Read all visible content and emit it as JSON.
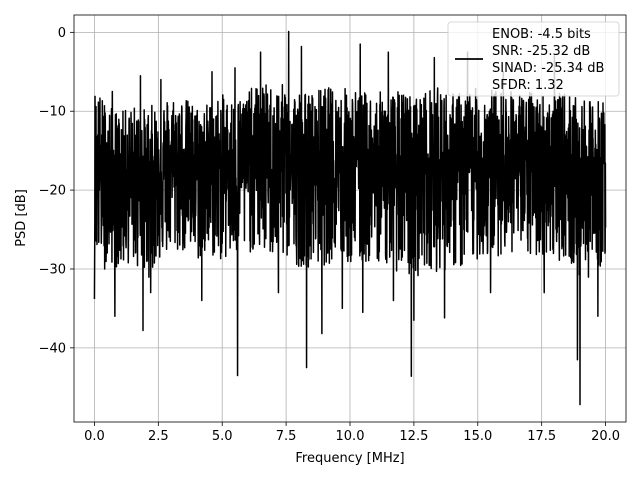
{
  "chart_data": {
    "type": "line",
    "title": "",
    "xlabel": "Frequency [MHz]",
    "ylabel": "PSD [dB]",
    "xlim": [
      -0.8,
      20.8
    ],
    "ylim": [
      -49.4,
      2.2
    ],
    "xticks": [
      0.0,
      2.5,
      5.0,
      7.5,
      10.0,
      12.5,
      15.0,
      17.5,
      20.0
    ],
    "xtick_labels": [
      "0.0",
      "2.5",
      "5.0",
      "7.5",
      "10.0",
      "12.5",
      "15.0",
      "17.5",
      "20.0"
    ],
    "yticks": [
      0,
      -10,
      -20,
      -30,
      -40
    ],
    "ytick_labels": [
      "0",
      "−10",
      "−20",
      "−30",
      "−40"
    ],
    "grid": true,
    "legend_position": "top-right",
    "series": [
      {
        "name": "",
        "color": "#000000",
        "legend_lines": [
          "ENOB: -4.5 bits",
          "SNR: -25.32 dB",
          "SINAD: -25.34 dB",
          "SFDR: 1.32"
        ],
        "envelope_top": [
          [
            0.0,
            -3
          ],
          [
            0.5,
            -6
          ],
          [
            1.0,
            -7
          ],
          [
            1.5,
            -6
          ],
          [
            2.0,
            -6
          ],
          [
            2.5,
            -5.5
          ],
          [
            3.0,
            -4.5
          ],
          [
            3.5,
            -5
          ],
          [
            4.0,
            -6
          ],
          [
            4.5,
            -5.5
          ],
          [
            5.0,
            -4.5
          ],
          [
            5.5,
            -5
          ],
          [
            6.0,
            -4
          ],
          [
            6.5,
            -3
          ],
          [
            7.0,
            -3
          ],
          [
            7.5,
            -3
          ],
          [
            8.0,
            -3.5
          ],
          [
            8.5,
            -4
          ],
          [
            9.0,
            -3
          ],
          [
            9.5,
            -3.5
          ],
          [
            10.0,
            -3
          ],
          [
            10.5,
            -4
          ],
          [
            11.0,
            -4
          ],
          [
            11.5,
            -4
          ],
          [
            12.0,
            -3.5
          ],
          [
            12.5,
            -4
          ],
          [
            13.0,
            -3.5
          ],
          [
            13.5,
            -3
          ],
          [
            14.0,
            -4
          ],
          [
            14.5,
            -3.5
          ],
          [
            15.0,
            -3.5
          ],
          [
            15.5,
            -3.5
          ],
          [
            16.0,
            -4
          ],
          [
            16.5,
            -4
          ],
          [
            17.0,
            -4
          ],
          [
            17.5,
            -4
          ],
          [
            18.0,
            -4.5
          ],
          [
            18.5,
            -4
          ],
          [
            19.0,
            -5
          ],
          [
            19.5,
            -5
          ],
          [
            20.0,
            -5
          ]
        ],
        "envelope_bottom": [
          [
            0.0,
            -33
          ],
          [
            0.5,
            -33
          ],
          [
            1.0,
            -34
          ],
          [
            1.5,
            -33
          ],
          [
            2.0,
            -36
          ],
          [
            2.5,
            -33
          ],
          [
            3.0,
            -32
          ],
          [
            3.5,
            -32
          ],
          [
            4.0,
            -33
          ],
          [
            4.5,
            -33
          ],
          [
            5.0,
            -33
          ],
          [
            5.5,
            -33
          ],
          [
            6.0,
            -32
          ],
          [
            6.5,
            -32
          ],
          [
            7.0,
            -33
          ],
          [
            7.5,
            -33
          ],
          [
            8.0,
            -34
          ],
          [
            8.5,
            -34
          ],
          [
            9.0,
            -34
          ],
          [
            9.5,
            -33
          ],
          [
            10.0,
            -34
          ],
          [
            10.5,
            -34
          ],
          [
            11.0,
            -33
          ],
          [
            11.5,
            -34
          ],
          [
            12.0,
            -35
          ],
          [
            12.5,
            -36
          ],
          [
            13.0,
            -34
          ],
          [
            13.5,
            -35
          ],
          [
            14.0,
            -34
          ],
          [
            14.5,
            -35
          ],
          [
            15.0,
            -33
          ],
          [
            15.5,
            -33
          ],
          [
            16.0,
            -32
          ],
          [
            16.5,
            -32
          ],
          [
            17.0,
            -33
          ],
          [
            17.5,
            -33
          ],
          [
            18.0,
            -33
          ],
          [
            18.5,
            -33
          ],
          [
            19.0,
            -36
          ],
          [
            19.5,
            -35
          ],
          [
            20.0,
            -33
          ]
        ],
        "peaks": [
          [
            0.0,
            -2.8
          ],
          [
            0.7,
            -7.5
          ],
          [
            1.8,
            -5.5
          ],
          [
            2.6,
            -6
          ],
          [
            4.6,
            -5
          ],
          [
            5.5,
            -4.5
          ],
          [
            6.5,
            -2.5
          ],
          [
            7.6,
            0.1
          ],
          [
            8.1,
            -1.8
          ],
          [
            10.4,
            -1.5
          ],
          [
            11.5,
            -2.5
          ],
          [
            13.3,
            -3.2
          ],
          [
            14.6,
            -2.5
          ],
          [
            15.5,
            -2.5
          ],
          [
            16.0,
            -5
          ],
          [
            18.0,
            -3
          ],
          [
            18.9,
            -5.5
          ]
        ],
        "dips": [
          [
            0.0,
            -33.8
          ],
          [
            0.4,
            -30
          ],
          [
            0.8,
            -36
          ],
          [
            1.9,
            -37.8
          ],
          [
            2.2,
            -33
          ],
          [
            4.2,
            -34
          ],
          [
            5.6,
            -43.5
          ],
          [
            7.2,
            -33
          ],
          [
            8.3,
            -42.5
          ],
          [
            8.9,
            -38.2
          ],
          [
            9.7,
            -35
          ],
          [
            10.5,
            -35.5
          ],
          [
            11.7,
            -34
          ],
          [
            12.4,
            -43.6
          ],
          [
            12.5,
            -36.5
          ],
          [
            13.7,
            -36.2
          ],
          [
            15.5,
            -33
          ],
          [
            17.6,
            -33
          ],
          [
            18.9,
            -41.5
          ],
          [
            19.0,
            -47.2
          ],
          [
            19.7,
            -36
          ]
        ]
      }
    ]
  }
}
